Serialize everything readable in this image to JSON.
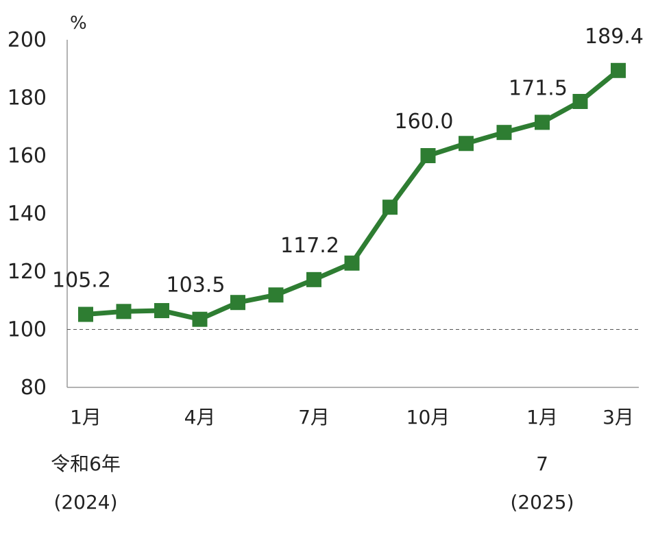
{
  "chart_data": {
    "type": "line",
    "unit": "%",
    "ylim": [
      80,
      200
    ],
    "yticks": [
      "80",
      "100",
      "120",
      "140",
      "160",
      "180",
      "200"
    ],
    "reference_line": 100,
    "x_tick_labels": [
      {
        "index": 0,
        "month": "1月",
        "era": "令和6年",
        "year": "(2024)"
      },
      {
        "index": 3,
        "month": "4月"
      },
      {
        "index": 6,
        "month": "7月"
      },
      {
        "index": 9,
        "month": "10月"
      },
      {
        "index": 12,
        "month": "1月",
        "era": "7",
        "year": "(2025)"
      },
      {
        "index": 14,
        "month": "3月"
      }
    ],
    "series": [
      {
        "color": "#2e7d32",
        "values": [
          105.2,
          106.2,
          106.5,
          103.5,
          109.3,
          111.9,
          117.2,
          122.9,
          142.2,
          160.0,
          164.2,
          168.0,
          171.5,
          178.7,
          189.4
        ]
      }
    ],
    "data_labels": [
      {
        "index": 0,
        "text": "105.2"
      },
      {
        "index": 3,
        "text": "103.5"
      },
      {
        "index": 6,
        "text": "117.2"
      },
      {
        "index": 9,
        "text": "160.0"
      },
      {
        "index": 12,
        "text": "171.5"
      },
      {
        "index": 14,
        "text": "189.4"
      }
    ]
  }
}
